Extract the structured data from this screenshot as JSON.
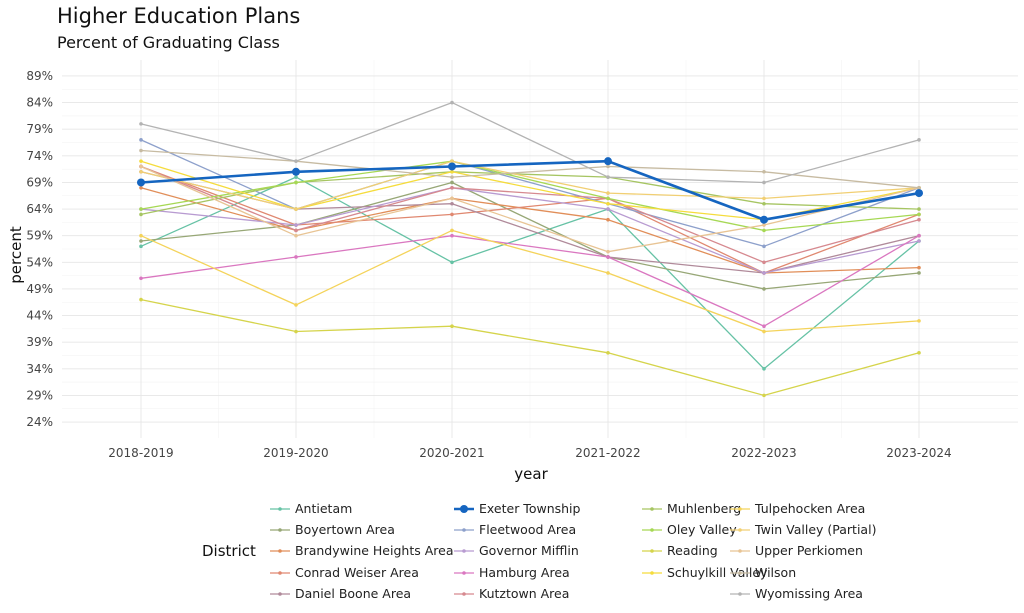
{
  "chart_data": {
    "type": "line",
    "title": "Higher Education Plans",
    "subtitle": "Percent of Graduating Class",
    "xlabel": "year",
    "ylabel": "percent",
    "legend_title": "District",
    "x": [
      "2018-2019",
      "2019-2020",
      "2020-2021",
      "2021-2022",
      "2022-2023",
      "2023-2024"
    ],
    "ylim": [
      21,
      92
    ],
    "yticks": [
      24,
      29,
      34,
      39,
      44,
      49,
      54,
      59,
      64,
      69,
      74,
      79,
      84,
      89
    ],
    "ytick_labels": [
      "24%",
      "29%",
      "34%",
      "39%",
      "44%",
      "49%",
      "54%",
      "59%",
      "64%",
      "69%",
      "74%",
      "79%",
      "84%",
      "89%"
    ],
    "highlight": "Exeter Township",
    "highlight_color": "#1565c0",
    "legend_placement": "bottom",
    "series": [
      {
        "name": "Antietam",
        "color": "#66c2a5",
        "values": [
          57,
          70,
          54,
          64,
          34,
          58
        ]
      },
      {
        "name": "Boyertown Area",
        "color": "#97a776",
        "values": [
          58,
          61,
          69,
          55,
          49,
          52
        ]
      },
      {
        "name": "Brandywine Heights Area",
        "color": "#e18e59",
        "values": [
          68,
          60,
          66,
          62,
          52,
          53
        ]
      },
      {
        "name": "Conrad Weiser Area",
        "color": "#e08870",
        "values": [
          72,
          61,
          63,
          66,
          52,
          63
        ]
      },
      {
        "name": "Daniel Boone Area",
        "color": "#b08a9a",
        "values": [
          71,
          64,
          65,
          55,
          52,
          59
        ]
      },
      {
        "name": "Exeter Township",
        "color": "#1565c0",
        "values": [
          69,
          71,
          72,
          73,
          62,
          67
        ]
      },
      {
        "name": "Fleetwood Area",
        "color": "#8da0cb",
        "values": [
          77,
          64,
          73,
          65,
          57,
          68
        ]
      },
      {
        "name": "Governor Mifflin",
        "color": "#b89bd1",
        "values": [
          64,
          61,
          68,
          64,
          52,
          58
        ]
      },
      {
        "name": "Hamburg Area",
        "color": "#da77c0",
        "values": [
          51,
          55,
          59,
          55,
          42,
          59
        ]
      },
      {
        "name": "Kutztown Area",
        "color": "#d6898f",
        "values": [
          72,
          60,
          68,
          66,
          54,
          62
        ]
      },
      {
        "name": "Muhlenberg",
        "color": "#a6c562",
        "values": [
          63,
          69,
          71,
          70,
          65,
          64
        ]
      },
      {
        "name": "Oley Valley",
        "color": "#a6d854",
        "values": [
          64,
          69,
          73,
          66,
          60,
          63
        ]
      },
      {
        "name": "Reading",
        "color": "#d5d44b",
        "values": [
          47,
          41,
          42,
          37,
          29,
          37
        ]
      },
      {
        "name": "Schuylkill Valley",
        "color": "#f5dc3c",
        "values": [
          73,
          64,
          71,
          65,
          62,
          68
        ]
      },
      {
        "name": "Tulpehocken Area",
        "color": "#f4d35a",
        "values": [
          59,
          46,
          60,
          52,
          41,
          43
        ]
      },
      {
        "name": "Twin Valley (Partial)",
        "color": "#f1cf73",
        "values": [
          71,
          64,
          73,
          67,
          66,
          68
        ]
      },
      {
        "name": "Upper Perkiomen",
        "color": "#e8c494",
        "values": [
          72,
          59,
          66,
          56,
          61,
          68
        ]
      },
      {
        "name": "Wilson",
        "color": "#c7bba2",
        "values": [
          75,
          73,
          70,
          72,
          71,
          68
        ]
      },
      {
        "name": "Wyomissing Area",
        "color": "#b3b3b3",
        "values": [
          80,
          73,
          84,
          70,
          69,
          77
        ]
      }
    ]
  }
}
